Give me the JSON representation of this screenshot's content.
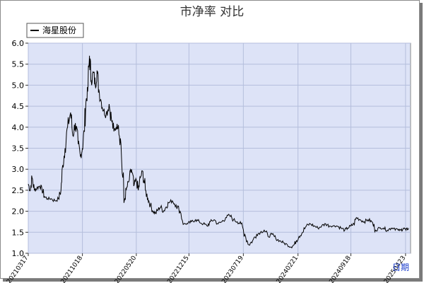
{
  "chart_data": {
    "type": "line",
    "title": "市净率  对比",
    "xlabel": "日期",
    "ylabel": "",
    "ylim": [
      1.0,
      6.0
    ],
    "y_ticks": [
      "1.0",
      "1.5",
      "2.0",
      "2.5",
      "3.0",
      "3.5",
      "4.0",
      "4.5",
      "5.0",
      "5.5",
      "6.0"
    ],
    "x_ticks": [
      "20210317",
      "20211018",
      "20220520",
      "20221215",
      "20230719",
      "20240221",
      "20240918",
      "20250423"
    ],
    "grid": true,
    "legend_position": "top-left",
    "colors": {
      "plot_bg": "#dde3f7",
      "grid": "#b4bedc",
      "line": "#000000",
      "xlabel": "#1a3ccc"
    },
    "series": [
      {
        "name": "海星股份",
        "x": [
          "2021-03-17",
          "2021-03-25",
          "2021-04-01",
          "2021-04-10",
          "2021-04-20",
          "2021-05-01",
          "2021-05-10",
          "2021-05-20",
          "2021-06-01",
          "2021-06-15",
          "2021-07-01",
          "2021-07-15",
          "2021-07-25",
          "2021-08-01",
          "2021-08-10",
          "2021-08-20",
          "2021-09-01",
          "2021-09-10",
          "2021-09-20",
          "2021-10-01",
          "2021-10-10",
          "2021-10-18",
          "2021-10-25",
          "2021-11-01",
          "2021-11-08",
          "2021-11-15",
          "2021-11-22",
          "2021-12-01",
          "2021-12-08",
          "2021-12-15",
          "2021-12-22",
          "2022-01-01",
          "2022-01-10",
          "2022-01-20",
          "2022-02-01",
          "2022-02-10",
          "2022-02-20",
          "2022-03-01",
          "2022-03-10",
          "2022-03-20",
          "2022-04-01",
          "2022-04-10",
          "2022-04-20",
          "2022-05-01",
          "2022-05-10",
          "2022-05-20",
          "2022-05-28",
          "2022-06-05",
          "2022-06-15",
          "2022-06-25",
          "2022-07-05",
          "2022-07-15",
          "2022-07-25",
          "2022-08-05",
          "2022-08-15",
          "2022-08-25",
          "2022-09-05",
          "2022-09-15",
          "2022-09-25",
          "2022-10-10",
          "2022-10-25",
          "2022-11-10",
          "2022-11-25",
          "2022-12-10",
          "2022-12-25",
          "2023-01-10",
          "2023-01-25",
          "2023-02-10",
          "2023-02-25",
          "2023-03-10",
          "2023-03-25",
          "2023-04-10",
          "2023-04-25",
          "2023-05-10",
          "2023-05-25",
          "2023-06-10",
          "2023-06-25",
          "2023-07-10",
          "2023-07-25",
          "2023-08-10",
          "2023-08-25",
          "2023-09-10",
          "2023-09-25",
          "2023-10-10",
          "2023-10-25",
          "2023-11-10",
          "2023-11-25",
          "2023-12-10",
          "2023-12-25",
          "2024-01-10",
          "2024-01-25",
          "2024-02-05",
          "2024-02-15",
          "2024-02-25",
          "2024-03-10",
          "2024-03-25",
          "2024-04-10",
          "2024-04-25",
          "2024-05-10",
          "2024-05-25",
          "2024-06-10",
          "2024-06-25",
          "2024-07-10",
          "2024-07-25",
          "2024-08-10",
          "2024-08-25",
          "2024-09-05",
          "2024-09-18",
          "2024-09-30",
          "2024-10-10",
          "2024-10-25",
          "2024-11-10",
          "2024-11-25",
          "2024-12-10",
          "2024-12-25",
          "2025-01-10",
          "2025-01-25",
          "2025-02-10",
          "2025-02-25",
          "2025-03-10",
          "2025-03-25",
          "2025-04-05",
          "2025-04-15",
          "2025-04-25",
          "2025-05-05"
        ],
        "values": [
          2.65,
          2.5,
          2.8,
          2.5,
          2.55,
          2.6,
          2.55,
          2.35,
          2.3,
          2.3,
          2.25,
          2.3,
          2.5,
          3.1,
          3.5,
          4.0,
          4.35,
          3.8,
          4.1,
          3.6,
          3.3,
          3.5,
          3.9,
          4.6,
          4.85,
          5.7,
          5.1,
          5.3,
          5.0,
          5.35,
          4.9,
          4.6,
          4.4,
          4.3,
          4.55,
          4.2,
          3.9,
          4.0,
          4.05,
          3.6,
          2.2,
          2.5,
          2.7,
          3.0,
          2.6,
          2.75,
          2.5,
          2.8,
          2.95,
          2.5,
          2.3,
          2.15,
          2.0,
          1.95,
          2.05,
          2.1,
          2.0,
          2.1,
          2.2,
          2.25,
          2.15,
          2.0,
          1.7,
          1.7,
          1.75,
          1.8,
          1.75,
          1.7,
          1.65,
          1.75,
          1.8,
          1.7,
          1.75,
          1.85,
          1.9,
          1.8,
          1.75,
          1.7,
          1.45,
          1.2,
          1.3,
          1.45,
          1.5,
          1.55,
          1.4,
          1.45,
          1.35,
          1.3,
          1.25,
          1.2,
          1.15,
          1.2,
          1.3,
          1.4,
          1.5,
          1.65,
          1.7,
          1.65,
          1.6,
          1.65,
          1.7,
          1.65,
          1.65,
          1.65,
          1.6,
          1.55,
          1.6,
          1.65,
          1.7,
          1.85,
          1.8,
          1.75,
          1.8,
          1.75,
          1.55,
          1.6,
          1.6,
          1.55,
          1.6,
          1.6,
          1.55,
          1.55,
          1.6,
          1.55,
          1.6
        ]
      }
    ]
  }
}
